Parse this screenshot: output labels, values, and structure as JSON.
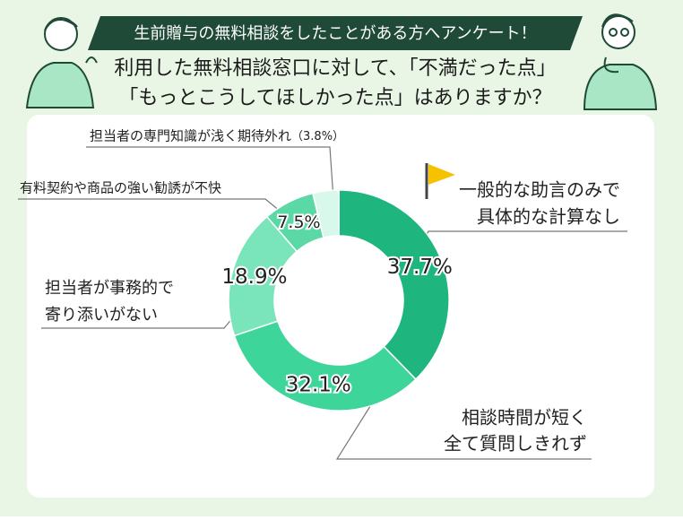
{
  "chart_data": {
    "type": "donut",
    "banner": "生前贈与の無料相談をしたことがある方へアンケート！",
    "title": [
      "利用した無料相談窓口に対して、「不満だった点」",
      "「もっとこうしてほしかった点」はありますか？"
    ],
    "categories": [
      [
        "一般的な助言のみで",
        "具体的な計算なし"
      ],
      [
        "相談時間が短く",
        "全て質問しきれず"
      ],
      [
        "担当者が事務的で",
        "寄り添いがない"
      ],
      [
        "有料契約や商品の強い勧誘が不快"
      ],
      [
        "担当者の専門知識が浅く期待外れ"
      ]
    ],
    "values": [
      37.7,
      32.1,
      18.9,
      7.5,
      3.8
    ],
    "value_labels": [
      "37.7%",
      "32.1%",
      "18.9%",
      "7.5%",
      "（3.8%）"
    ],
    "colors": [
      "#1fb57e",
      "#3ed59b",
      "#7ae4ba",
      "#5ad8a5",
      "#d8f8ec"
    ]
  }
}
